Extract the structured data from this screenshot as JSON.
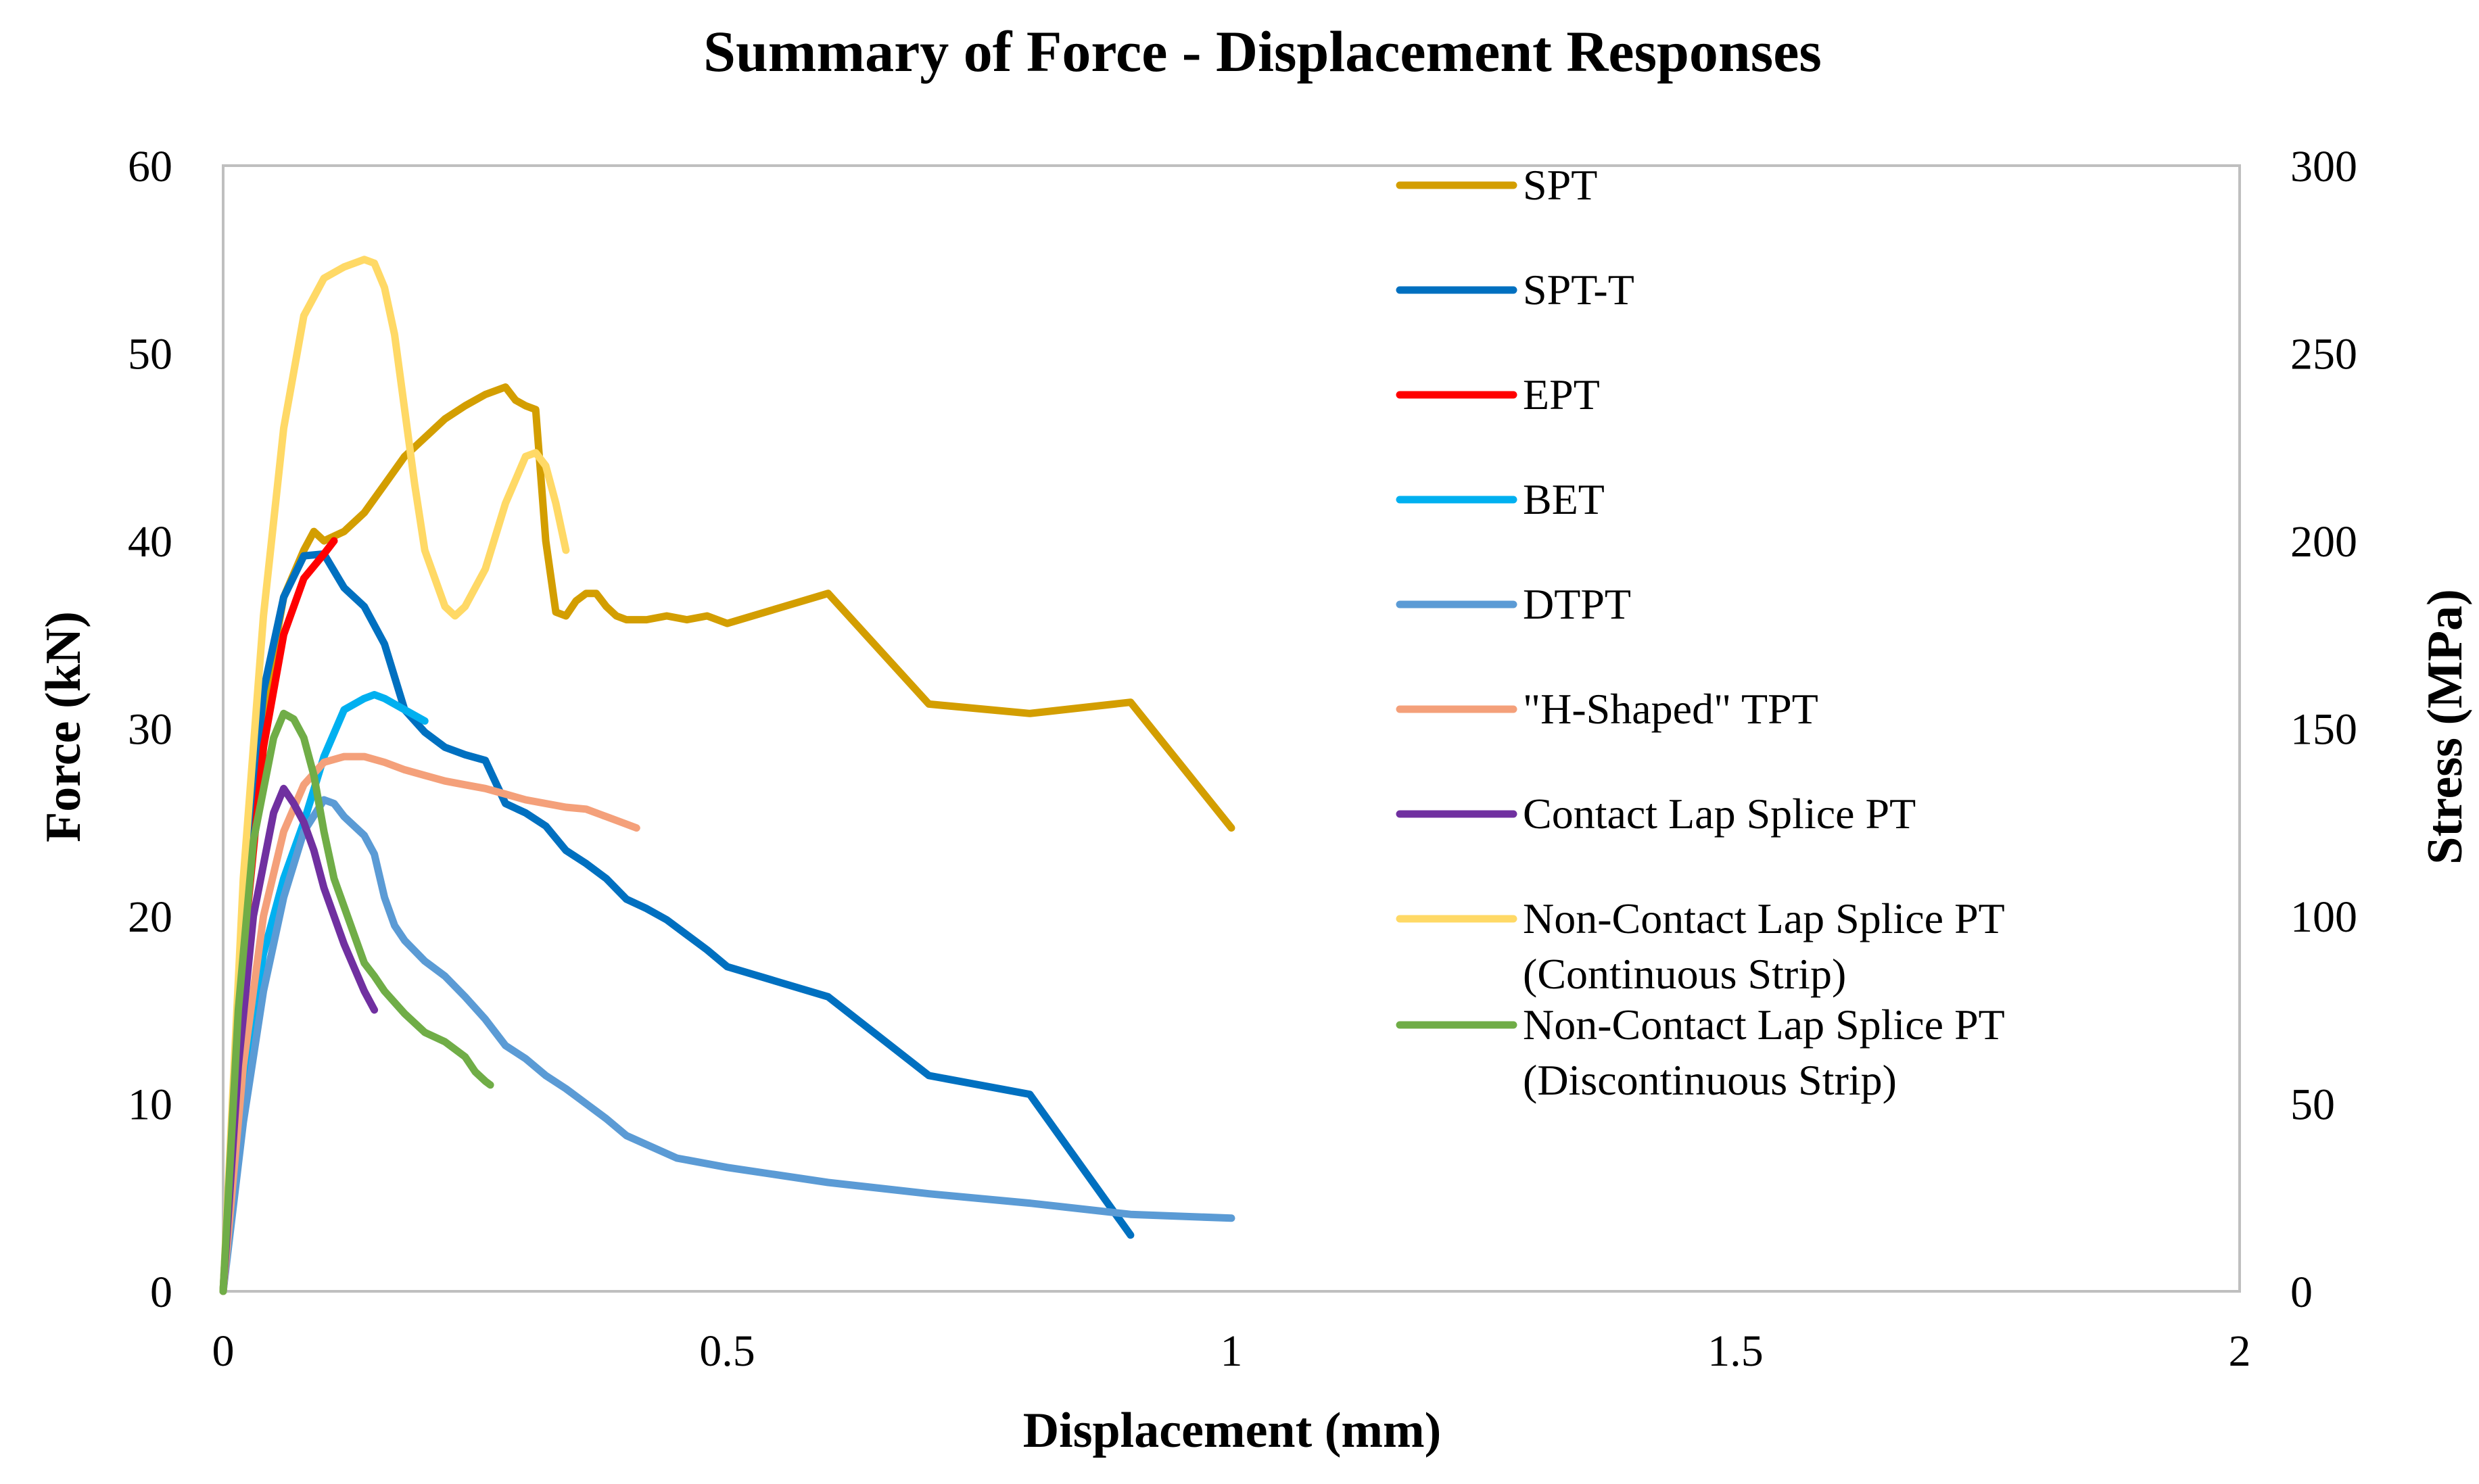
{
  "chart_data": {
    "type": "line",
    "title": "Summary of Force - Displacement Responses",
    "xlabel": "Displacement (mm)",
    "ylabel": "Force (kN)",
    "y2label": "Stress (MPa)",
    "xlim": [
      0,
      2
    ],
    "ylim": [
      0,
      60
    ],
    "y2lim": [
      0,
      300
    ],
    "xticks": [
      0,
      0.5,
      1,
      1.5,
      2
    ],
    "xtick_labels": [
      "0",
      "0.5",
      "1",
      "1.5",
      "2"
    ],
    "yticks": [
      0,
      10,
      20,
      30,
      40,
      50,
      60
    ],
    "ytick_labels": [
      "0",
      "10",
      "20",
      "30",
      "40",
      "50",
      "60"
    ],
    "y2ticks": [
      0,
      50,
      100,
      150,
      200,
      250,
      300
    ],
    "y2tick_labels": [
      "0",
      "50",
      "100",
      "150",
      "200",
      "250",
      "300"
    ],
    "grid": false,
    "legend_position": "right-inside",
    "series": [
      {
        "name": "SPT",
        "color": "#D39E00",
        "points": [
          [
            0,
            0
          ],
          [
            0.02,
            18
          ],
          [
            0.04,
            31
          ],
          [
            0.06,
            37
          ],
          [
            0.08,
            39.5
          ],
          [
            0.09,
            40.5
          ],
          [
            0.1,
            40
          ],
          [
            0.12,
            40.5
          ],
          [
            0.14,
            41.5
          ],
          [
            0.16,
            43
          ],
          [
            0.18,
            44.5
          ],
          [
            0.2,
            45.5
          ],
          [
            0.22,
            46.5
          ],
          [
            0.24,
            47.2
          ],
          [
            0.26,
            47.8
          ],
          [
            0.27,
            48
          ],
          [
            0.28,
            48.2
          ],
          [
            0.29,
            47.5
          ],
          [
            0.3,
            47.2
          ],
          [
            0.31,
            47
          ],
          [
            0.32,
            40
          ],
          [
            0.33,
            36.2
          ],
          [
            0.34,
            36
          ],
          [
            0.35,
            36.8
          ],
          [
            0.36,
            37.2
          ],
          [
            0.37,
            37.2
          ],
          [
            0.38,
            36.5
          ],
          [
            0.39,
            36
          ],
          [
            0.4,
            35.8
          ],
          [
            0.42,
            35.8
          ],
          [
            0.44,
            36
          ],
          [
            0.46,
            35.8
          ],
          [
            0.48,
            36
          ],
          [
            0.5,
            35.6
          ],
          [
            0.55,
            36.4
          ],
          [
            0.6,
            37.2
          ],
          [
            0.7,
            31.3
          ],
          [
            0.8,
            30.8
          ],
          [
            0.9,
            31.4
          ],
          [
            1.0,
            24.7
          ]
        ]
      },
      {
        "name": "SPT-T",
        "color": "#0070C0",
        "points": [
          [
            0,
            0
          ],
          [
            0.02,
            20
          ],
          [
            0.04,
            32
          ],
          [
            0.06,
            37
          ],
          [
            0.08,
            39.2
          ],
          [
            0.1,
            39.3
          ],
          [
            0.12,
            37.5
          ],
          [
            0.14,
            36.5
          ],
          [
            0.16,
            34.5
          ],
          [
            0.18,
            31
          ],
          [
            0.2,
            29.8
          ],
          [
            0.22,
            29
          ],
          [
            0.24,
            28.6
          ],
          [
            0.26,
            28.3
          ],
          [
            0.28,
            26
          ],
          [
            0.3,
            25.5
          ],
          [
            0.32,
            24.8
          ],
          [
            0.34,
            23.5
          ],
          [
            0.36,
            22.8
          ],
          [
            0.38,
            22
          ],
          [
            0.4,
            20.9
          ],
          [
            0.42,
            20.4
          ],
          [
            0.44,
            19.8
          ],
          [
            0.46,
            19
          ],
          [
            0.48,
            18.2
          ],
          [
            0.5,
            17.3
          ],
          [
            0.55,
            16.5
          ],
          [
            0.6,
            15.7
          ],
          [
            0.7,
            11.5
          ],
          [
            0.8,
            10.5
          ],
          [
            0.9,
            3
          ]
        ]
      },
      {
        "name": "EPT",
        "color": "#FF0000",
        "points": [
          [
            0.02,
            18
          ],
          [
            0.04,
            29
          ],
          [
            0.06,
            35
          ],
          [
            0.08,
            38
          ],
          [
            0.1,
            39.3
          ],
          [
            0.11,
            40
          ]
        ]
      },
      {
        "name": "BET",
        "color": "#00B0F0",
        "points": [
          [
            0,
            0
          ],
          [
            0.02,
            11
          ],
          [
            0.04,
            18
          ],
          [
            0.06,
            22
          ],
          [
            0.08,
            25
          ],
          [
            0.1,
            28.5
          ],
          [
            0.12,
            31
          ],
          [
            0.14,
            31.6
          ],
          [
            0.15,
            31.8
          ],
          [
            0.16,
            31.6
          ],
          [
            0.18,
            31
          ],
          [
            0.2,
            30.4
          ]
        ]
      },
      {
        "name": "DTPT",
        "color": "#5B9BD5",
        "points": [
          [
            0,
            0
          ],
          [
            0.02,
            9
          ],
          [
            0.04,
            16
          ],
          [
            0.06,
            21
          ],
          [
            0.08,
            24.5
          ],
          [
            0.1,
            26.2
          ],
          [
            0.11,
            26
          ],
          [
            0.12,
            25.3
          ],
          [
            0.14,
            24.3
          ],
          [
            0.15,
            23.3
          ],
          [
            0.16,
            21
          ],
          [
            0.17,
            19.5
          ],
          [
            0.18,
            18.7
          ],
          [
            0.2,
            17.6
          ],
          [
            0.22,
            16.8
          ],
          [
            0.24,
            15.7
          ],
          [
            0.26,
            14.5
          ],
          [
            0.28,
            13.1
          ],
          [
            0.3,
            12.4
          ],
          [
            0.32,
            11.5
          ],
          [
            0.34,
            10.8
          ],
          [
            0.36,
            10
          ],
          [
            0.38,
            9.2
          ],
          [
            0.4,
            8.3
          ],
          [
            0.45,
            7.1
          ],
          [
            0.5,
            6.6
          ],
          [
            0.6,
            5.8
          ],
          [
            0.7,
            5.2
          ],
          [
            0.8,
            4.7
          ],
          [
            0.9,
            4.1
          ],
          [
            1.0,
            3.9
          ]
        ]
      },
      {
        "name": "\"H-Shaped\" TPT",
        "color": "#F4A07A",
        "points": [
          [
            0,
            0
          ],
          [
            0.02,
            12
          ],
          [
            0.04,
            20
          ],
          [
            0.06,
            24.5
          ],
          [
            0.08,
            27
          ],
          [
            0.1,
            28.2
          ],
          [
            0.12,
            28.5
          ],
          [
            0.14,
            28.5
          ],
          [
            0.16,
            28.2
          ],
          [
            0.18,
            27.8
          ],
          [
            0.2,
            27.5
          ],
          [
            0.22,
            27.2
          ],
          [
            0.24,
            27
          ],
          [
            0.26,
            26.8
          ],
          [
            0.28,
            26.5
          ],
          [
            0.3,
            26.2
          ],
          [
            0.32,
            26
          ],
          [
            0.34,
            25.8
          ],
          [
            0.36,
            25.7
          ],
          [
            0.38,
            25.3
          ],
          [
            0.4,
            24.9
          ],
          [
            0.41,
            24.7
          ]
        ]
      },
      {
        "name": "Contact Lap Splice PT",
        "color": "#7030A0",
        "points": [
          [
            0,
            0
          ],
          [
            0.015,
            12
          ],
          [
            0.03,
            20
          ],
          [
            0.05,
            25.5
          ],
          [
            0.06,
            26.8
          ],
          [
            0.07,
            26
          ],
          [
            0.08,
            25
          ],
          [
            0.09,
            23.5
          ],
          [
            0.1,
            21.5
          ],
          [
            0.12,
            18.5
          ],
          [
            0.14,
            16
          ],
          [
            0.15,
            15
          ]
        ]
      },
      {
        "name": "Non-Contact Lap Splice PT (Continuous Strip)",
        "color": "#FFD966",
        "points": [
          [
            0,
            0
          ],
          [
            0.02,
            22
          ],
          [
            0.04,
            36
          ],
          [
            0.06,
            46
          ],
          [
            0.08,
            52
          ],
          [
            0.1,
            54
          ],
          [
            0.12,
            54.6
          ],
          [
            0.14,
            55
          ],
          [
            0.15,
            54.8
          ],
          [
            0.16,
            53.5
          ],
          [
            0.17,
            51
          ],
          [
            0.18,
            47
          ],
          [
            0.19,
            43
          ],
          [
            0.2,
            39.5
          ],
          [
            0.22,
            36.5
          ],
          [
            0.23,
            36
          ],
          [
            0.24,
            36.5
          ],
          [
            0.26,
            38.5
          ],
          [
            0.28,
            42
          ],
          [
            0.3,
            44.5
          ],
          [
            0.31,
            44.7
          ],
          [
            0.32,
            44
          ],
          [
            0.33,
            42
          ],
          [
            0.34,
            39.5
          ]
        ]
      },
      {
        "name": "Non-Contact Lap Splice PT (Discontinuous Strip)",
        "color": "#70AD47",
        "points": [
          [
            0,
            0
          ],
          [
            0.015,
            15
          ],
          [
            0.03,
            24
          ],
          [
            0.05,
            29.5
          ],
          [
            0.06,
            30.8
          ],
          [
            0.07,
            30.5
          ],
          [
            0.08,
            29.5
          ],
          [
            0.09,
            27.5
          ],
          [
            0.1,
            24.5
          ],
          [
            0.11,
            22
          ],
          [
            0.12,
            20.5
          ],
          [
            0.13,
            19
          ],
          [
            0.14,
            17.5
          ],
          [
            0.15,
            16.8
          ],
          [
            0.16,
            16
          ],
          [
            0.18,
            14.8
          ],
          [
            0.2,
            13.8
          ],
          [
            0.22,
            13.3
          ],
          [
            0.24,
            12.5
          ],
          [
            0.25,
            11.7
          ],
          [
            0.26,
            11.2
          ],
          [
            0.265,
            11
          ]
        ]
      }
    ],
    "legend_lines": [
      [
        "SPT"
      ],
      [
        "SPT-T"
      ],
      [
        "EPT"
      ],
      [
        "BET"
      ],
      [
        "DTPT"
      ],
      [
        "\"H-Shaped\" TPT"
      ],
      [
        "Contact Lap Splice PT"
      ],
      [
        "Non-Contact Lap Splice PT",
        "(Continuous Strip)"
      ],
      [
        "Non-Contact Lap Splice PT",
        "(Discontinuous Strip)"
      ]
    ]
  }
}
